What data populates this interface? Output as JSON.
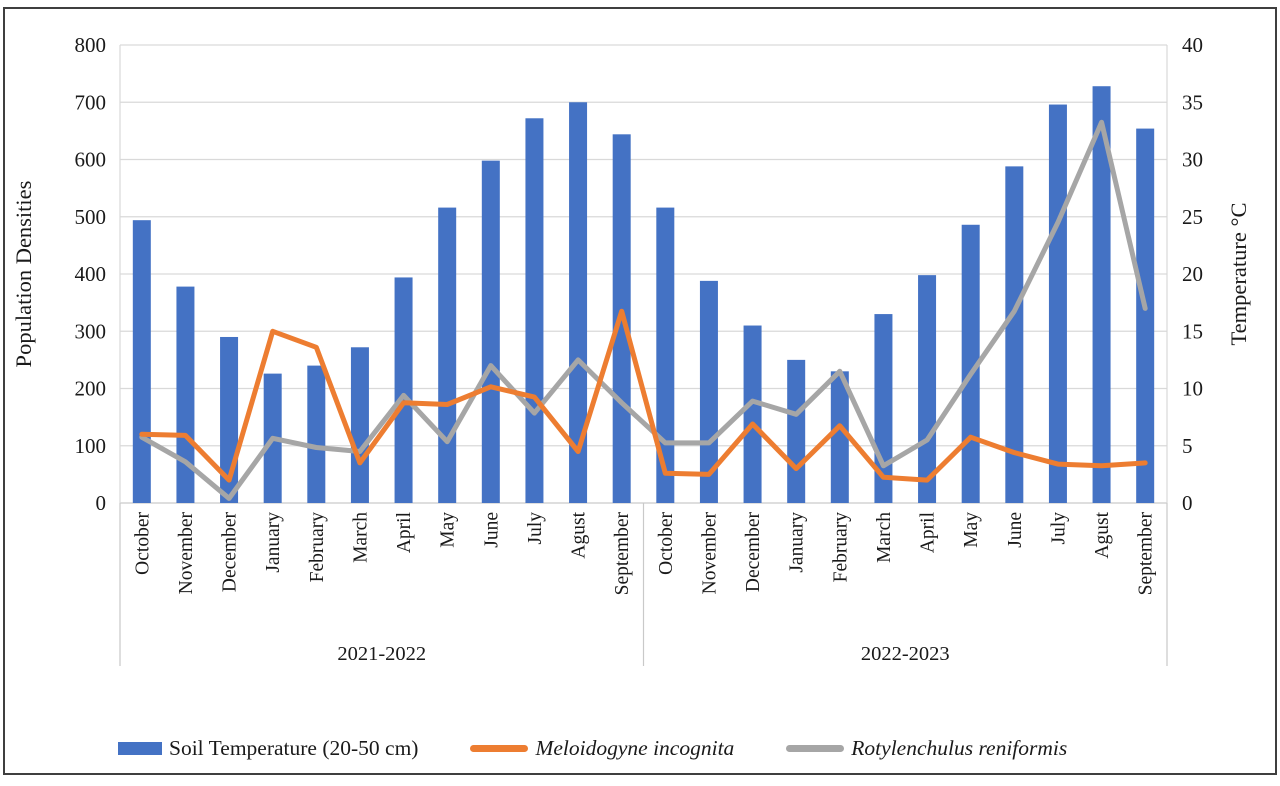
{
  "figure": {
    "background": "#ffffff",
    "border_color": "#3f3f3f"
  },
  "colors": {
    "bar_blue": "#4472C4",
    "line_orange": "#ED7D31",
    "line_gray": "#A6A6A6",
    "gridline": "#D9D9D9",
    "axis_line": "#C9C9C9",
    "separator": "#C9C9C9",
    "text": "#1a1a1a"
  },
  "left_axis": {
    "title": "Population Densities",
    "ticks": [
      0,
      100,
      200,
      300,
      400,
      500,
      600,
      700,
      800
    ]
  },
  "right_axis": {
    "title": "Temperature °C",
    "ticks": [
      0,
      5,
      10,
      15,
      20,
      25,
      30,
      35,
      40
    ],
    "scale_to_left": 20
  },
  "legend": {
    "items": [
      {
        "label": "Soil Temperature (20-50 cm)",
        "marker": "bar",
        "color_key": "bar_blue",
        "italic": false
      },
      {
        "label": "Meloidogyne incognita",
        "marker": "line",
        "color_key": "line_orange",
        "italic": true
      },
      {
        "label": "Rotylenchulus reniformis",
        "marker": "line",
        "color_key": "line_gray",
        "italic": true
      }
    ]
  },
  "chart_data": {
    "type": "combo",
    "categories": [
      "October",
      "November",
      "December",
      "January",
      "February",
      "March",
      "April",
      "May",
      "June",
      "July",
      "Agust",
      "September",
      "October",
      "November",
      "December",
      "January",
      "February",
      "March",
      "April",
      "May",
      "June",
      "July",
      "Agust",
      "September"
    ],
    "groups": [
      {
        "label": "2021-2022",
        "span": 12
      },
      {
        "label": "2022-2023",
        "span": 12
      }
    ],
    "left_ylabel": "Population Densities",
    "right_ylabel": "Temperature °C",
    "left_ylim": [
      0,
      800
    ],
    "right_ylim": [
      0,
      40
    ],
    "gridlines": true,
    "legend_position": "bottom",
    "series": [
      {
        "name": "Soil Temperature (20-50 cm)",
        "type": "bar",
        "axis": "right",
        "unit": "°C",
        "color": "#4472C4",
        "values": [
          24.7,
          18.9,
          14.5,
          11.3,
          12.0,
          13.6,
          19.7,
          25.8,
          29.9,
          33.6,
          35.0,
          32.2,
          25.8,
          19.4,
          15.5,
          12.5,
          11.5,
          16.5,
          19.9,
          24.3,
          29.4,
          34.8,
          36.4,
          32.7
        ]
      },
      {
        "name": "Meloidogyne incognita",
        "type": "line",
        "axis": "left",
        "unit": "population density",
        "color": "#ED7D31",
        "values": [
          120,
          118,
          40,
          300,
          272,
          70,
          175,
          172,
          203,
          185,
          90,
          335,
          52,
          50,
          138,
          60,
          135,
          45,
          40,
          115,
          88,
          68,
          65,
          70
        ]
      },
      {
        "name": "Rotylenchulus reniformis",
        "type": "line",
        "axis": "left",
        "unit": "population density",
        "color": "#A6A6A6",
        "values": [
          115,
          72,
          8,
          113,
          97,
          90,
          188,
          107,
          240,
          157,
          250,
          175,
          105,
          105,
          178,
          155,
          230,
          65,
          110,
          225,
          335,
          490,
          665,
          340
        ]
      }
    ]
  }
}
